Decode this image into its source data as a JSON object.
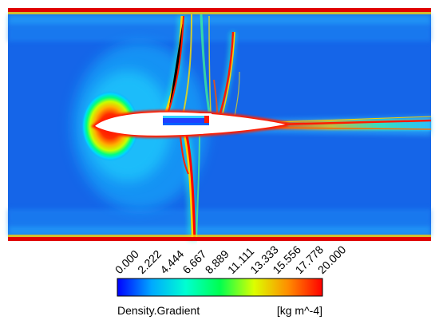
{
  "legend": {
    "variable": "Density.Gradient",
    "units": "[kg m^-4]",
    "range": [
      0,
      20
    ],
    "ticks": [
      "0.000",
      "2.222",
      "4.444",
      "6.667",
      "8.889",
      "11.111",
      "13.333",
      "15.556",
      "17.778",
      "20.000"
    ],
    "colormap": [
      "#0000ff",
      "#00a8ff",
      "#00ffd2",
      "#00ff50",
      "#dcff00",
      "#ff8c00",
      "#ff0000"
    ]
  },
  "field": {
    "background_color": "#1565e8",
    "wall_color": "#e00000",
    "airfoil_color": "#ffffff"
  }
}
